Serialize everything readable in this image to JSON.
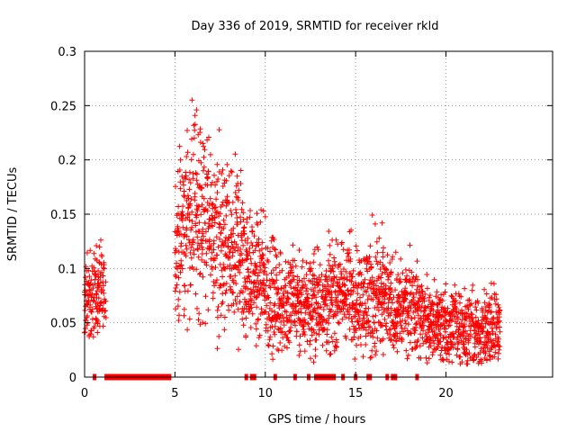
{
  "chart_data": {
    "type": "scatter",
    "title": "Day 336 of 2019, SRMTID for receiver rkld",
    "xlabel": "GPS time / hours",
    "ylabel": "SRMTID / TECUs",
    "xlim": [
      0,
      25.9
    ],
    "ylim": [
      0,
      0.3
    ],
    "x_ticks": [
      0,
      5,
      10,
      15,
      20
    ],
    "x_tick_labels": [
      "0",
      "5",
      "10",
      "15",
      "20"
    ],
    "y_ticks": [
      0,
      0.05,
      0.1,
      0.15,
      0.2,
      0.25,
      0.3
    ],
    "y_tick_labels": [
      "0",
      "0.05",
      "0.1",
      "0.15",
      "0.2",
      "0.25",
      "0.3"
    ],
    "grid": true,
    "marker": "plus",
    "series_color": "#ff0000",
    "zero_flag_intervals": [
      [
        0.45,
        0.55
      ],
      [
        1.1,
        4.8
      ],
      [
        8.85,
        9.0
      ],
      [
        9.15,
        9.5
      ],
      [
        10.45,
        10.6
      ],
      [
        11.55,
        11.65
      ],
      [
        12.3,
        12.4
      ],
      [
        12.7,
        13.9
      ],
      [
        14.2,
        14.3
      ],
      [
        14.9,
        15.0
      ],
      [
        15.6,
        15.9
      ],
      [
        16.65,
        16.75
      ],
      [
        16.95,
        17.3
      ],
      [
        18.3,
        18.4
      ]
    ],
    "envelope_hours": [
      0.0,
      0.5,
      1.0,
      1.2,
      4.6,
      5.0,
      5.5,
      6.0,
      6.5,
      7.0,
      7.5,
      8.0,
      8.5,
      9.0,
      9.5,
      10.0,
      10.5,
      11.0,
      11.5,
      12.0,
      12.5,
      13.0,
      13.5,
      14.0,
      14.5,
      15.0,
      15.5,
      16.0,
      16.5,
      17.0,
      17.5,
      18.0,
      18.5,
      19.0,
      19.5,
      20.0,
      20.5,
      21.0,
      21.5,
      22.0,
      22.5,
      23.0
    ],
    "envelope_center": [
      0.072,
      0.08,
      0.075,
      0.07,
      null,
      0.12,
      0.13,
      0.16,
      0.15,
      0.13,
      0.12,
      0.11,
      0.12,
      0.1,
      0.09,
      0.08,
      0.07,
      0.065,
      0.07,
      0.06,
      0.07,
      0.07,
      0.075,
      0.075,
      0.08,
      0.075,
      0.07,
      0.075,
      0.07,
      0.065,
      0.06,
      0.07,
      0.06,
      0.05,
      0.05,
      0.045,
      0.05,
      0.045,
      0.04,
      0.04,
      0.045,
      0.05
    ],
    "envelope_spread": [
      0.025,
      0.03,
      0.025,
      0.02,
      null,
      0.05,
      0.05,
      0.06,
      0.07,
      0.05,
      0.06,
      0.05,
      0.06,
      0.04,
      0.04,
      0.04,
      0.035,
      0.03,
      0.035,
      0.03,
      0.035,
      0.03,
      0.035,
      0.03,
      0.035,
      0.035,
      0.035,
      0.05,
      0.035,
      0.03,
      0.03,
      0.03,
      0.03,
      0.025,
      0.025,
      0.025,
      0.025,
      0.025,
      0.025,
      0.025,
      0.03,
      0.02
    ]
  }
}
